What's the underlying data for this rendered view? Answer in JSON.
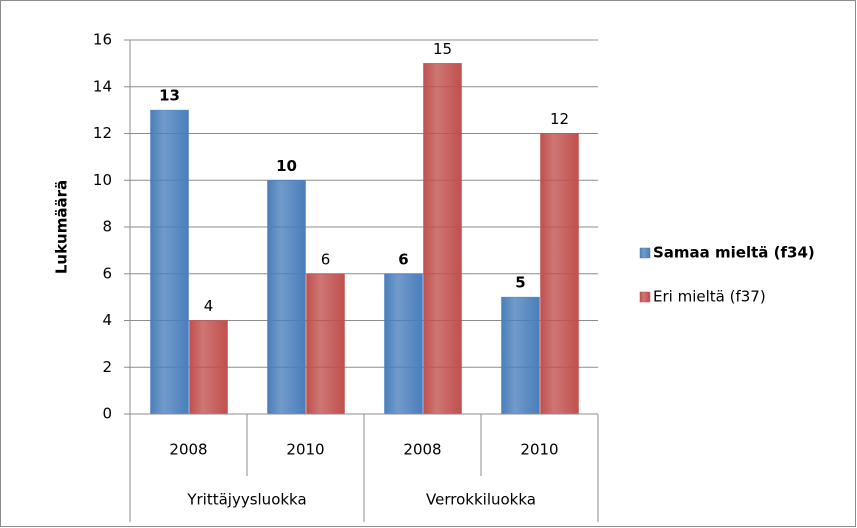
{
  "chart_data": {
    "type": "bar",
    "y_label": "Lukumäärä",
    "categories": [
      "2008",
      "2010",
      "2008",
      "2010"
    ],
    "groups": [
      "Yrittäjyysluokka",
      "Verrokkiluokka"
    ],
    "series": [
      {
        "name": "Samaa mieltä (f34)",
        "color": "#4a7ebb",
        "values": [
          13,
          10,
          6,
          5
        ]
      },
      {
        "name": "Eri mieltä (f37)",
        "color": "#c0504d",
        "values": [
          4,
          6,
          15,
          12
        ]
      }
    ],
    "ylim": [
      0,
      16
    ],
    "yticks": [
      0,
      2,
      4,
      6,
      8,
      10,
      12,
      14,
      16
    ],
    "grid": true,
    "legend": "right"
  }
}
